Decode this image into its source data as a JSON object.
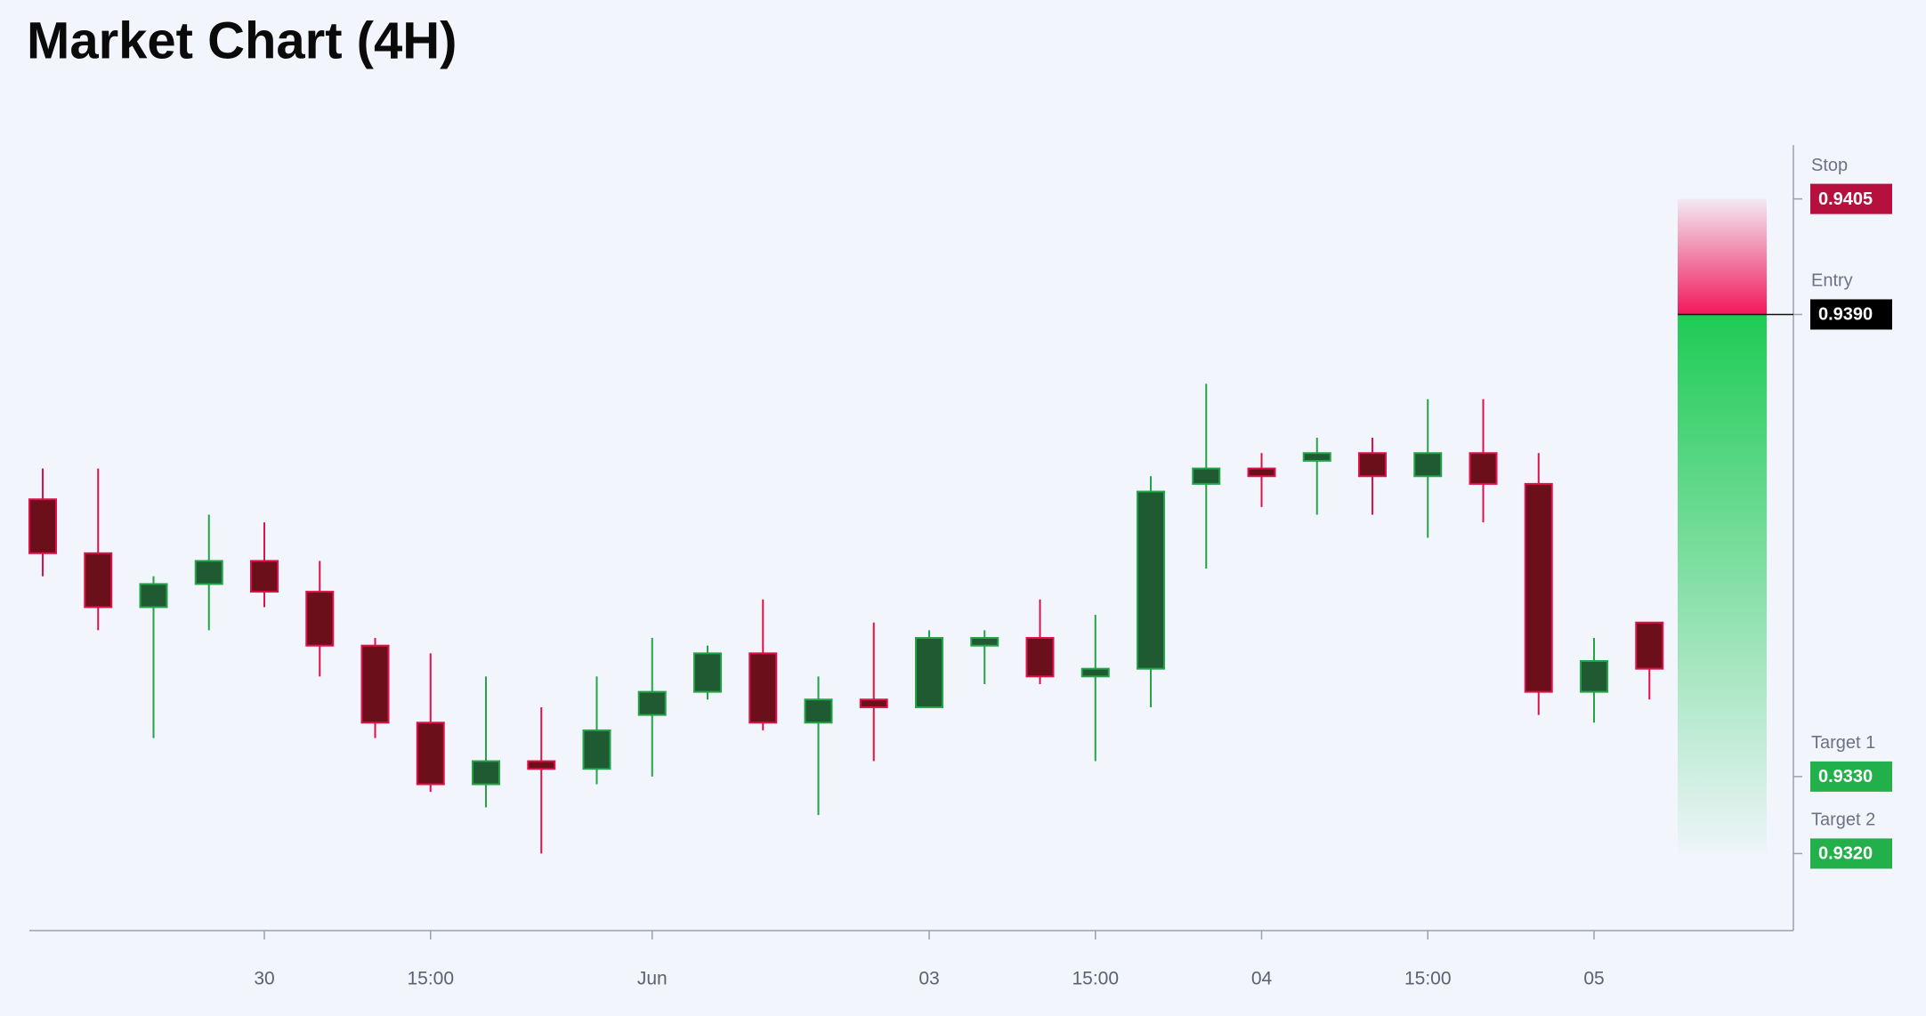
{
  "chart_data": {
    "type": "candlestick",
    "title": "Market Chart (4H)",
    "categories": [
      null,
      null,
      null,
      null,
      "30",
      null,
      null,
      "15:00",
      null,
      null,
      null,
      "Jun",
      null,
      null,
      null,
      null,
      "03",
      null,
      null,
      "15:00",
      null,
      null,
      "04",
      null,
      null,
      "15:00",
      null,
      null,
      "05",
      null
    ],
    "open": [
      0.9366,
      0.9359,
      0.9352,
      0.9355,
      0.9358,
      0.9354,
      0.9347,
      0.9337,
      0.9329,
      0.9332,
      0.9331,
      0.9338,
      0.9341,
      0.9346,
      0.9337,
      0.934,
      0.9339,
      0.9347,
      0.9348,
      0.9343,
      0.9344,
      0.9368,
      0.937,
      0.9371,
      0.9372,
      0.9369,
      0.9372,
      0.9368,
      0.9341,
      0.935
    ],
    "high": [
      0.937,
      0.937,
      0.9356,
      0.9364,
      0.9363,
      0.9358,
      0.9348,
      0.9346,
      0.9343,
      0.9339,
      0.9343,
      0.9348,
      0.9347,
      0.9353,
      0.9343,
      0.935,
      0.9349,
      0.9349,
      0.9353,
      0.9351,
      0.9369,
      0.9381,
      0.9372,
      0.9374,
      0.9374,
      0.9379,
      0.9379,
      0.9372,
      0.9348,
      0.935
    ],
    "low": [
      0.9356,
      0.9349,
      0.9335,
      0.9349,
      0.9352,
      0.9343,
      0.9335,
      0.9328,
      0.9326,
      0.932,
      0.9329,
      0.933,
      0.934,
      0.9336,
      0.9325,
      0.9332,
      0.9339,
      0.9342,
      0.9342,
      0.9332,
      0.9339,
      0.9357,
      0.9365,
      0.9364,
      0.9364,
      0.9361,
      0.9363,
      0.9338,
      0.9337,
      0.934
    ],
    "close": [
      0.9359,
      0.9352,
      0.9355,
      0.9358,
      0.9354,
      0.9347,
      0.9337,
      0.9329,
      0.9332,
      0.9331,
      0.9336,
      0.9341,
      0.9346,
      0.9337,
      0.934,
      0.9339,
      0.9348,
      0.9348,
      0.9343,
      0.9344,
      0.9367,
      0.937,
      0.9369,
      0.9372,
      0.9369,
      0.9372,
      0.9368,
      0.9341,
      0.9345,
      0.9344
    ],
    "up_color": "#22a447",
    "up_fill": "#1f5a32",
    "down_color": "#e0114a",
    "down_fill": "#6b0f1a",
    "ylim": [
      0.931,
      0.9412
    ],
    "levels": {
      "names": [
        "Stop",
        "Entry",
        "Target 1",
        "Target 2"
      ],
      "values": [
        0.9405,
        0.939,
        0.933,
        0.932
      ],
      "value_labels": [
        "0.9405",
        "0.9390",
        "0.9330",
        "0.9320"
      ],
      "colors": [
        "#b5103e",
        "#000000",
        "#22b04b",
        "#22b04b"
      ]
    }
  }
}
